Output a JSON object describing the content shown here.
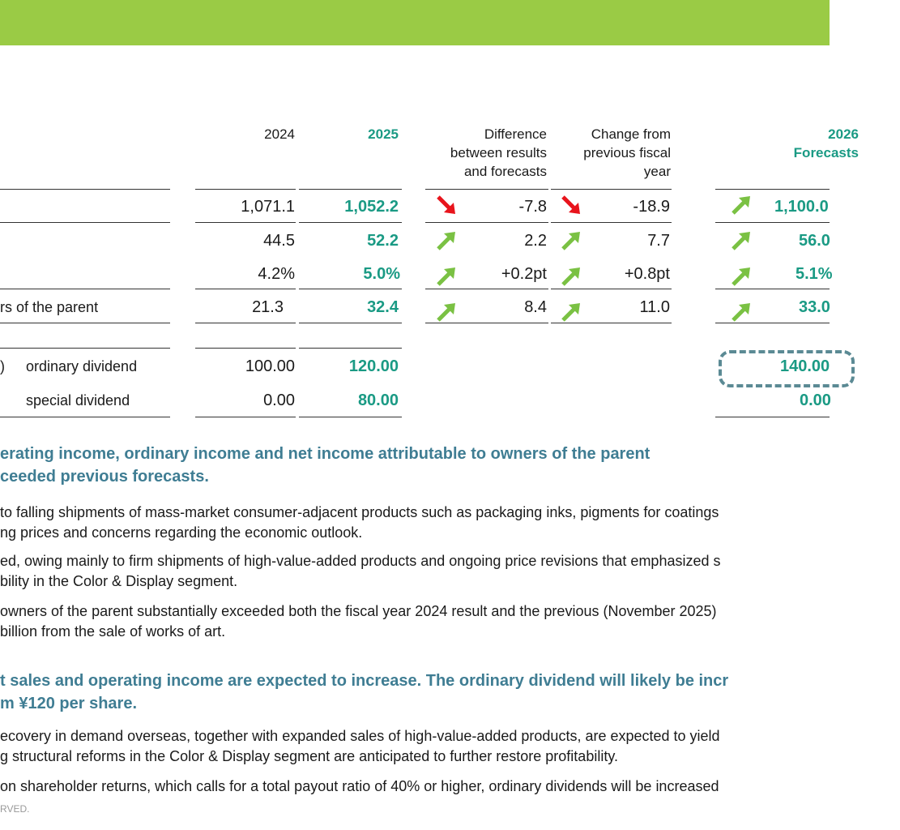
{
  "colors": {
    "topbar": "#9acb45",
    "accent_teal": "#1a9a84",
    "heading_blue": "#3f7d93",
    "arrow_up": "#7ac143",
    "arrow_down": "#e8141c"
  },
  "headers": {
    "y2024": "2024",
    "y2025": "2025",
    "diff": [
      "Difference",
      "between results",
      "and forecasts"
    ],
    "change": [
      "Change from",
      "previous fiscal",
      "year"
    ],
    "y2026": [
      "2026",
      "Forecasts"
    ]
  },
  "rows": [
    {
      "label": "",
      "v2024": "1,071.1",
      "v2025": "1,052.2",
      "diff_arrow": "arrow-down-icon",
      "diff": "-7.8",
      "chg_arrow": "arrow-down-icon",
      "chg": "-18.9",
      "f_arrow": "arrow-up-icon",
      "f2026": "1,100.0"
    },
    {
      "label": "",
      "v2024": "44.5",
      "v2025": "52.2",
      "diff_arrow": "arrow-up-icon",
      "diff": "2.2",
      "chg_arrow": "arrow-up-icon",
      "chg": "7.7",
      "f_arrow": "arrow-up-icon",
      "f2026": "56.0"
    },
    {
      "label": "",
      "v2024": "4.2%",
      "v2025": "5.0%",
      "diff_arrow": "arrow-up-icon",
      "diff": "+0.2pt",
      "chg_arrow": "arrow-up-icon",
      "chg": "+0.8pt",
      "f_arrow": "arrow-up-icon",
      "f2026": "5.1%"
    },
    {
      "label": "rs of the parent",
      "v2024": "21.3",
      "v2025": "32.4",
      "diff_arrow": "arrow-up-icon",
      "diff": "8.4",
      "chg_arrow": "arrow-up-icon",
      "chg": "11.0",
      "f_arrow": "arrow-up-icon",
      "f2026": "33.0"
    }
  ],
  "dividends": {
    "paren": ")",
    "ordinary": {
      "label": "ordinary dividend",
      "v2024": "100.00",
      "v2025": "120.00",
      "f2026": "140.00"
    },
    "special": {
      "label": "special dividend",
      "v2024": "0.00",
      "v2025": "80.00",
      "f2026": "0.00"
    }
  },
  "section1": {
    "heading": [
      "erating income, ordinary income and net income attributable to owners of the parent",
      "ceeded previous forecasts."
    ],
    "paras": [
      [
        "to falling shipments of mass-market consumer-adjacent products such as packaging inks, pigments for coatings",
        "ng prices and concerns regarding the economic outlook."
      ],
      [
        "ed, owing mainly to firm shipments of high-value-added products and ongoing price revisions that emphasized s",
        "bility in the Color & Display segment."
      ],
      [
        "owners of the parent substantially exceeded both the fiscal year 2024 result and the previous (November 2025)",
        "billion from the sale of works of art."
      ]
    ]
  },
  "section2": {
    "heading": [
      "t sales and operating income are expected to increase. The ordinary dividend will likely be incr",
      "m ¥120 per share."
    ],
    "paras": [
      [
        "ecovery in demand overseas, together with expanded sales of high-value-added products, are expected to yield",
        "g structural reforms in the Color & Display segment are anticipated to further restore profitability."
      ],
      [
        "on shareholder returns, which calls for a total payout ratio of 40% or higher, ordinary dividends will be increased"
      ]
    ]
  },
  "footer": "RVED."
}
